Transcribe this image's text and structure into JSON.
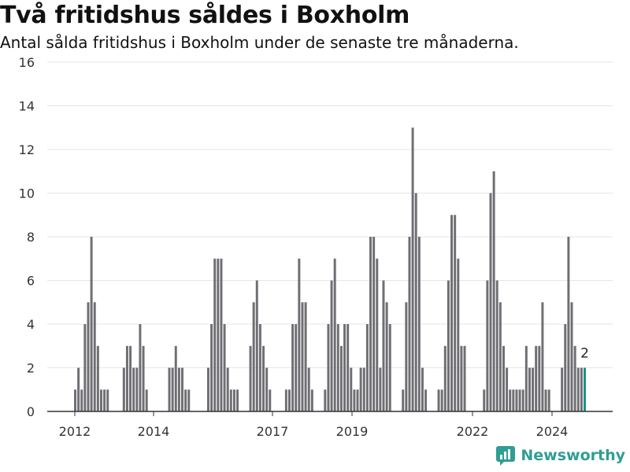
{
  "header": {
    "title": "Två fritidshus såldes i Boxholm",
    "subtitle": "Antal sålda fritidshus i Boxholm under de senaste tre månaderna."
  },
  "brand": {
    "name": "Newsworthy"
  },
  "colors": {
    "bar": "#6f6e73",
    "highlight": "#17918a",
    "grid": "#e6e6e6",
    "axis": "#333333",
    "brand": "#2f9e94"
  },
  "chart_data": {
    "type": "bar",
    "x_ticks": [
      "2012",
      "2014",
      "2017",
      "2019",
      "2022",
      "2024"
    ],
    "y_ticks": [
      "0",
      "2",
      "4",
      "6",
      "8",
      "10",
      "12",
      "14",
      "16"
    ],
    "ylim": [
      0,
      16
    ],
    "grid": true,
    "values": [
      1,
      2,
      1,
      4,
      5,
      8,
      5,
      3,
      1,
      1,
      1,
      0,
      0,
      0,
      0,
      2,
      3,
      3,
      2,
      2,
      4,
      3,
      1,
      0,
      0,
      0,
      0,
      0,
      0,
      2,
      2,
      3,
      2,
      2,
      1,
      1,
      0,
      0,
      0,
      0,
      0,
      2,
      4,
      7,
      7,
      7,
      4,
      2,
      1,
      1,
      1,
      0,
      0,
      0,
      3,
      5,
      6,
      4,
      3,
      2,
      1,
      0,
      0,
      0,
      0,
      1,
      1,
      4,
      4,
      7,
      5,
      5,
      2,
      1,
      0,
      0,
      0,
      1,
      4,
      6,
      7,
      4,
      3,
      4,
      4,
      2,
      1,
      1,
      2,
      2,
      4,
      8,
      8,
      7,
      2,
      6,
      5,
      4,
      0,
      0,
      0,
      1,
      5,
      8,
      13,
      10,
      8,
      2,
      1,
      0,
      0,
      0,
      1,
      1,
      3,
      6,
      9,
      9,
      7,
      3,
      3,
      0,
      0,
      0,
      0,
      0,
      1,
      6,
      10,
      11,
      6,
      5,
      3,
      2,
      1,
      1,
      1,
      1,
      1,
      3,
      2,
      2,
      3,
      3,
      5,
      1,
      1,
      0,
      0,
      0,
      2,
      4,
      8,
      5,
      3,
      2,
      2,
      2
    ],
    "highlight_last": true,
    "last_label": "2"
  }
}
